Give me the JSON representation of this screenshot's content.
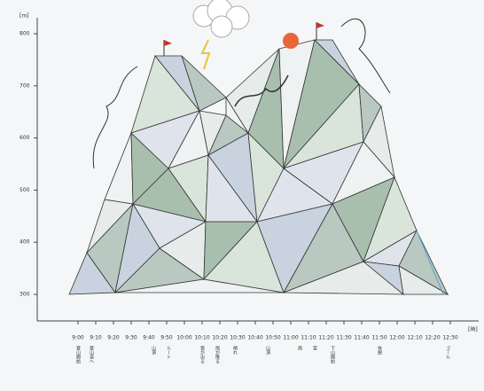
{
  "y_axis": {
    "unit": "[m]",
    "labels": [
      "800",
      "700",
      "600",
      "500",
      "400",
      "300"
    ]
  },
  "x_axis": {
    "unit": "[時]",
    "labels": [
      "9:00",
      "9:10",
      "9:20",
      "9:30",
      "9:40",
      "9:50",
      "10:00",
      "10:10",
      "10:20",
      "10:30",
      "10:40",
      "10:50",
      "11:00",
      "11:10",
      "11:20",
      "11:30",
      "11:40",
      "11:50",
      "12:00",
      "12:10",
      "12:20",
      "12:30"
    ]
  },
  "captions": [
    "登山開始",
    "登山道へ",
    "山頂",
    "ルート",
    "雲が出る",
    "雨が降る",
    "晴れ",
    "山頂",
    "雨",
    "雷",
    "下山開始",
    "休憩",
    "ゴール"
  ]
}
